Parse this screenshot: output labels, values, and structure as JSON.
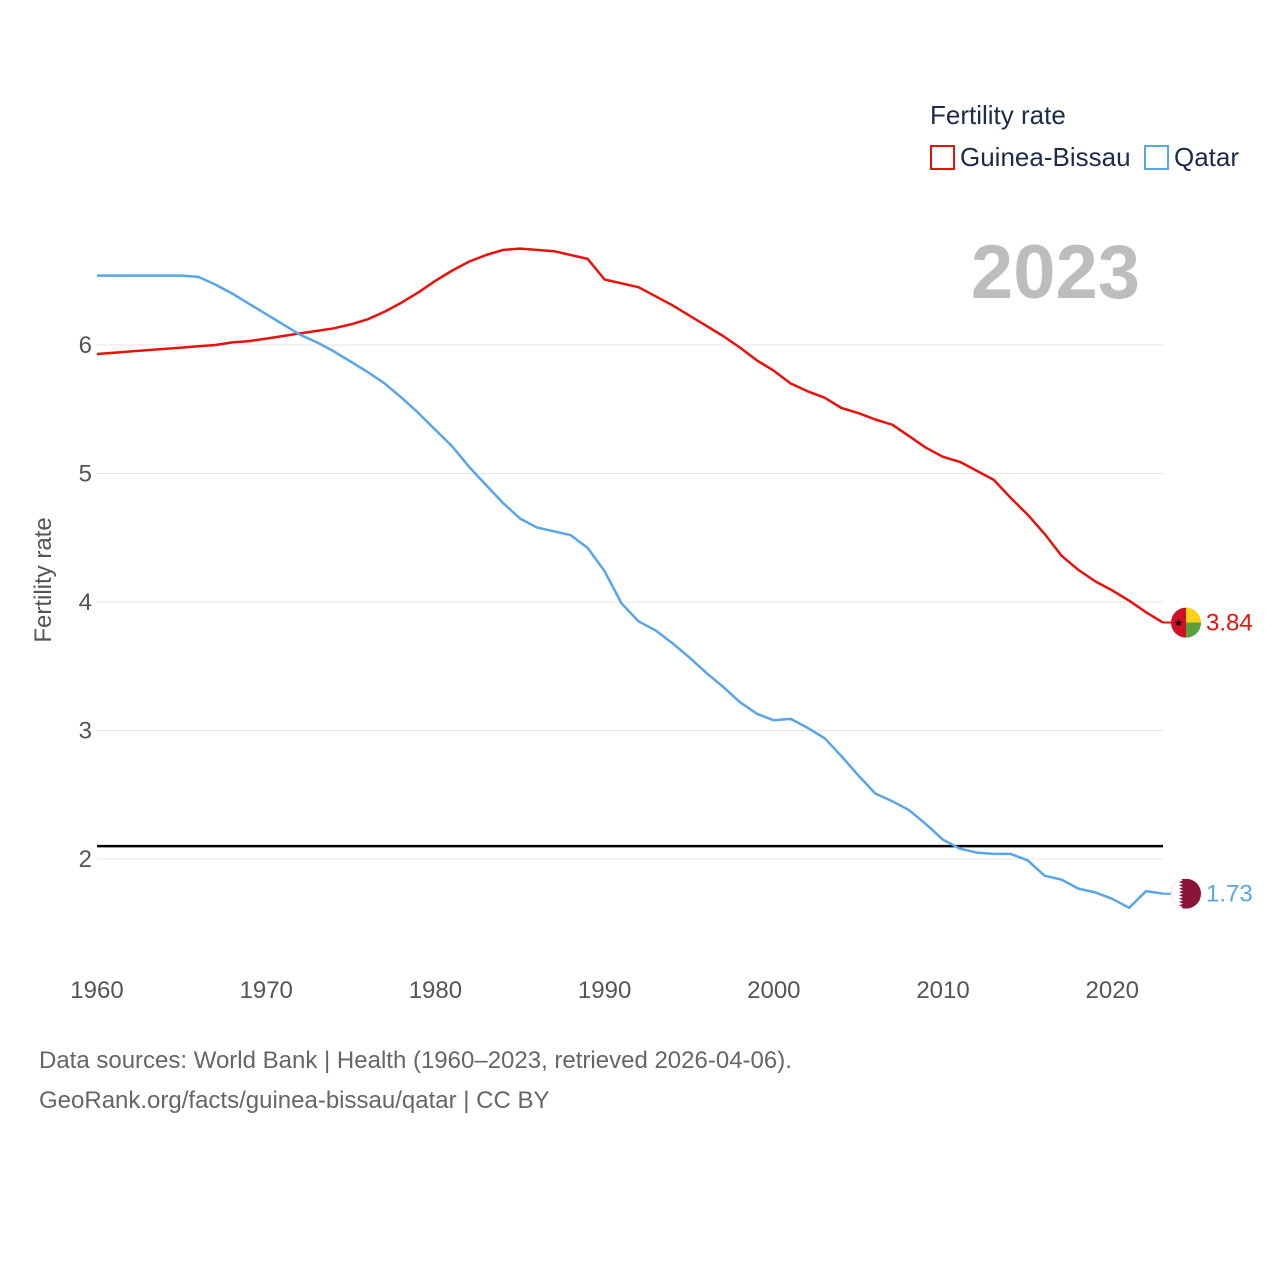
{
  "chart_data": {
    "type": "line",
    "title": "Fertility rate",
    "year_label": "2023",
    "ylabel": "Fertility rate",
    "xlabel": "",
    "xlim": [
      1960,
      2023
    ],
    "ylim": [
      1.3,
      6.9
    ],
    "x_ticks": [
      1960,
      1970,
      1980,
      1990,
      2000,
      2010,
      2020
    ],
    "y_ticks": [
      2,
      3,
      4,
      5,
      6
    ],
    "reference_line": {
      "value": 2.1
    },
    "x": [
      1960,
      1961,
      1962,
      1963,
      1964,
      1965,
      1966,
      1967,
      1968,
      1969,
      1970,
      1971,
      1972,
      1973,
      1974,
      1975,
      1976,
      1977,
      1978,
      1979,
      1980,
      1981,
      1982,
      1983,
      1984,
      1985,
      1986,
      1987,
      1988,
      1989,
      1990,
      1991,
      1992,
      1993,
      1994,
      1995,
      1996,
      1997,
      1998,
      1999,
      2000,
      2001,
      2002,
      2003,
      2004,
      2005,
      2006,
      2007,
      2008,
      2009,
      2010,
      2011,
      2012,
      2013,
      2014,
      2015,
      2016,
      2017,
      2018,
      2019,
      2020,
      2021,
      2022,
      2023
    ],
    "series": [
      {
        "name": "Guinea-Bissau",
        "color": "#e8120c",
        "end_label": "3.84",
        "flag": "guinea-bissau-flag",
        "values": [
          5.93,
          5.94,
          5.95,
          5.96,
          5.97,
          5.98,
          5.99,
          6.0,
          6.02,
          6.03,
          6.05,
          6.07,
          6.09,
          6.11,
          6.13,
          6.16,
          6.2,
          6.26,
          6.33,
          6.41,
          6.5,
          6.58,
          6.65,
          6.7,
          6.74,
          6.75,
          6.74,
          6.73,
          6.7,
          6.67,
          6.51,
          6.48,
          6.45,
          6.38,
          6.31,
          6.23,
          6.15,
          6.07,
          5.98,
          5.88,
          5.8,
          5.7,
          5.64,
          5.59,
          5.51,
          5.47,
          5.42,
          5.38,
          5.29,
          5.2,
          5.13,
          5.09,
          5.02,
          4.95,
          4.81,
          4.68,
          4.53,
          4.36,
          4.25,
          4.16,
          4.09,
          4.01,
          3.92,
          3.84
        ]
      },
      {
        "name": "Qatar",
        "color": "#5aa5e6",
        "end_label": "1.73",
        "flag": "qatar-flag",
        "values": [
          6.54,
          6.54,
          6.54,
          6.54,
          6.54,
          6.54,
          6.53,
          6.47,
          6.4,
          6.32,
          6.24,
          6.16,
          6.08,
          6.02,
          5.95,
          5.87,
          5.79,
          5.7,
          5.59,
          5.47,
          5.34,
          5.21,
          5.05,
          4.91,
          4.77,
          4.65,
          4.58,
          4.55,
          4.52,
          4.42,
          4.24,
          3.99,
          3.85,
          3.78,
          3.68,
          3.57,
          3.45,
          3.34,
          3.22,
          3.13,
          3.08,
          3.09,
          3.02,
          2.94,
          2.8,
          2.65,
          2.51,
          2.45,
          2.38,
          2.27,
          2.15,
          2.08,
          2.05,
          2.04,
          2.04,
          1.99,
          1.87,
          1.84,
          1.77,
          1.74,
          1.69,
          1.62,
          1.75,
          1.73
        ]
      }
    ]
  },
  "sources": {
    "line1": "Data sources: World Bank | Health (1960–2023, retrieved 2026-04-06).",
    "line2": "GeoRank.org/facts/guinea-bissau/qatar | CC BY"
  }
}
